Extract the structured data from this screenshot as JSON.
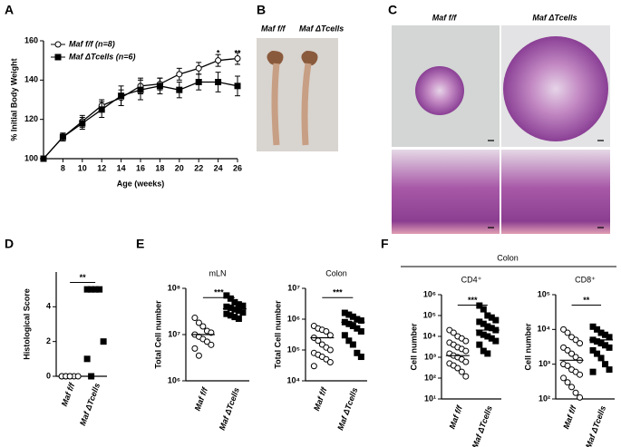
{
  "chart_data": [
    {
      "type": "line",
      "panel_label": "A",
      "xlabel": "Age (weeks)",
      "ylabel": "% Initial Body Weight",
      "x": [
        6,
        8,
        10,
        12,
        14,
        16,
        18,
        20,
        22,
        24,
        26
      ],
      "xlim": [
        6,
        26
      ],
      "xticks": [
        8,
        10,
        12,
        14,
        16,
        18,
        20,
        22,
        24,
        26
      ],
      "ylim": [
        100,
        160
      ],
      "yticks": [
        100,
        120,
        140,
        160
      ],
      "legend": "upper left",
      "series": [
        {
          "name": "Maf f/f (n=8)",
          "color": "#000000",
          "marker": "circle-open",
          "values": [
            100,
            111,
            119,
            127,
            131,
            137,
            138,
            143,
            146,
            150,
            151
          ],
          "errors": [
            0,
            2,
            3,
            3,
            4,
            4,
            3,
            3,
            3,
            3,
            3
          ]
        },
        {
          "name": "Maf ΔTcells (n=6)",
          "color": "#000000",
          "marker": "square-filled",
          "values": [
            100,
            111,
            118,
            125,
            132,
            135,
            137,
            135,
            139,
            139,
            137
          ],
          "errors": [
            0,
            2,
            3,
            4,
            5,
            5,
            4,
            4,
            4,
            5,
            5
          ]
        }
      ],
      "annotations": [
        {
          "text": "*",
          "x": 24
        },
        {
          "text": "**",
          "x": 26
        }
      ]
    },
    {
      "type": "dot",
      "panel_label": "D",
      "ylabel": "Histological Score",
      "categories": [
        "Maf f/f",
        "Maf ΔTcells"
      ],
      "ylim": [
        0,
        6
      ],
      "yticks": [
        0,
        2,
        4
      ],
      "significance": "**",
      "groups": [
        {
          "marker": "circle-open",
          "values": [
            0,
            0,
            0,
            0,
            0,
            0,
            0,
            0
          ]
        },
        {
          "marker": "square-filled",
          "values": [
            5,
            5,
            5,
            5,
            2,
            1,
            0
          ]
        }
      ]
    },
    {
      "type": "dot",
      "panel_label": "E",
      "title": "mLN",
      "ylabel": "Total Cell number",
      "log": true,
      "categories": [
        "Maf f/f",
        "Maf ΔTcells"
      ],
      "ylim": [
        1000000,
        100000000
      ],
      "yticks": [
        {
          "value": 1000000,
          "label": "10⁶"
        },
        {
          "value": 10000000,
          "label": "10⁷"
        },
        {
          "value": 100000000,
          "label": "10⁸"
        }
      ],
      "significance": "***",
      "groups": [
        {
          "marker": "circle-open",
          "mean": 10000000,
          "values": [
            23000000,
            18000000,
            15000000,
            12000000,
            11000000,
            10000000,
            9000000,
            8000000,
            7000000,
            6000000,
            5000000,
            3500000
          ]
        },
        {
          "marker": "square-filled",
          "mean": 36000000,
          "values": [
            70000000,
            60000000,
            50000000,
            45000000,
            42000000,
            40000000,
            38000000,
            35000000,
            33000000,
            30000000,
            28000000,
            26000000,
            24000000,
            22000000
          ]
        }
      ]
    },
    {
      "type": "dot",
      "title": "Colon",
      "ylabel": "Total Cell number",
      "log": true,
      "categories": [
        "Maf f/f",
        "Maf ΔTcells"
      ],
      "ylim": [
        10000,
        10000000
      ],
      "yticks": [
        {
          "value": 10000,
          "label": "10⁴"
        },
        {
          "value": 100000,
          "label": "10⁵"
        },
        {
          "value": 1000000,
          "label": "10⁶"
        },
        {
          "value": 10000000,
          "label": "10⁷"
        }
      ],
      "significance": "***",
      "groups": [
        {
          "marker": "circle-open",
          "mean": 250000,
          "values": [
            600000,
            500000,
            450000,
            400000,
            300000,
            250000,
            200000,
            150000,
            120000,
            100000,
            80000,
            70000,
            60000,
            50000,
            40000,
            30000
          ]
        },
        {
          "marker": "square-filled",
          "mean": 800000,
          "values": [
            1600000,
            1400000,
            1200000,
            1000000,
            900000,
            800000,
            700000,
            600000,
            500000,
            400000,
            300000,
            200000,
            150000,
            80000,
            60000
          ]
        }
      ]
    },
    {
      "type": "dot",
      "panel_label": "F",
      "group_title": "Colon",
      "title": "CD4⁺",
      "ylabel": "Cell number",
      "log": true,
      "categories": [
        "Maf f/f",
        "Maf ΔTcells"
      ],
      "ylim": [
        10,
        1000000
      ],
      "yticks": [
        {
          "value": 10,
          "label": "10¹"
        },
        {
          "value": 100,
          "label": "10²"
        },
        {
          "value": 1000,
          "label": "10³"
        },
        {
          "value": 10000,
          "label": "10⁴"
        },
        {
          "value": 100000,
          "label": "10⁵"
        },
        {
          "value": 1000000,
          "label": "10⁶"
        }
      ],
      "significance": "***",
      "groups": [
        {
          "marker": "circle-open",
          "mean": 1200,
          "values": [
            20000,
            15000,
            10000,
            8000,
            6000,
            5000,
            4000,
            3000,
            2500,
            2000,
            1500,
            1200,
            1000,
            800,
            600,
            500,
            400,
            300,
            200,
            120
          ]
        },
        {
          "marker": "square-filled",
          "mean": 20000,
          "values": [
            300000,
            200000,
            100000,
            80000,
            60000,
            50000,
            40000,
            30000,
            25000,
            20000,
            15000,
            12000,
            10000,
            8000,
            6000,
            4000,
            2000,
            1500
          ]
        }
      ]
    },
    {
      "type": "dot",
      "title": "CD8⁺",
      "ylabel": "Cell number",
      "log": true,
      "categories": [
        "Maf f/f",
        "Maf ΔTcells"
      ],
      "ylim": [
        100,
        100000
      ],
      "yticks": [
        {
          "value": 100,
          "label": "10²"
        },
        {
          "value": 1000,
          "label": "10³"
        },
        {
          "value": 10000,
          "label": "10⁴"
        },
        {
          "value": 100000,
          "label": "10⁵"
        }
      ],
      "significance": "**",
      "groups": [
        {
          "marker": "circle-open",
          "mean": 1300,
          "values": [
            10000,
            8000,
            6000,
            5000,
            4000,
            3000,
            2500,
            2000,
            1600,
            1300,
            1000,
            900,
            700,
            600,
            500,
            400,
            300,
            220,
            150,
            110
          ]
        },
        {
          "marker": "square-filled",
          "mean": 5000,
          "values": [
            12000,
            10000,
            8000,
            7000,
            6000,
            5000,
            4500,
            4000,
            3500,
            3000,
            2500,
            2000,
            1500,
            1000,
            700,
            600
          ]
        }
      ]
    }
  ],
  "figures": [
    {
      "panel_label": "B",
      "labels": [
        "Maf f/f",
        "Maf ΔTcells"
      ]
    },
    {
      "panel_label": "C",
      "labels": [
        "Maf f/f",
        "Maf ΔTcells"
      ]
    }
  ]
}
